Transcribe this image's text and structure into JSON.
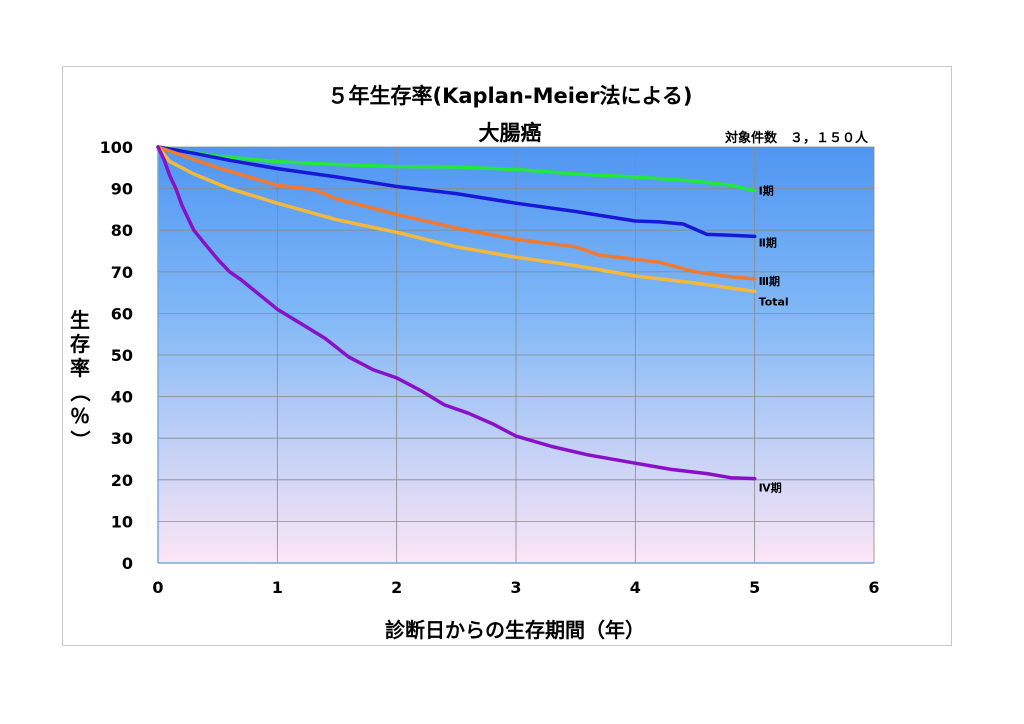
{
  "chart_data": {
    "type": "line",
    "title": "５年生存率(Kaplan-Meier法による)",
    "subtitle": "大腸癌",
    "count_label": "対象件数　３，１５０人",
    "xlabel": "診断日からの生存期間（年）",
    "ylabel": "生存率（％）",
    "xlim": [
      0,
      6
    ],
    "ylim": [
      0,
      100
    ],
    "xticks": [
      "0",
      "1",
      "2",
      "3",
      "4",
      "5",
      "6"
    ],
    "yticks": [
      "0",
      "10",
      "20",
      "30",
      "40",
      "50",
      "60",
      "70",
      "80",
      "90",
      "100"
    ],
    "grid": true,
    "series": [
      {
        "name": "Ⅰ期",
        "color": "#22e83a",
        "x": [
          0,
          0.5,
          1.0,
          1.5,
          2.0,
          2.5,
          3.0,
          3.5,
          4.0,
          4.5,
          4.8,
          5.0
        ],
        "y": [
          100,
          97.8,
          96.5,
          95.8,
          95.3,
          95.2,
          94.6,
          93.5,
          92.8,
          91.8,
          90.8,
          89.5
        ]
      },
      {
        "name": "Ⅱ期",
        "color": "#1818d8",
        "x": [
          0,
          0.3,
          0.6,
          1.0,
          1.5,
          2.0,
          2.5,
          3.0,
          3.5,
          4.0,
          4.2,
          4.4,
          4.6,
          4.8,
          5.0
        ],
        "y": [
          100,
          98.5,
          96.8,
          94.8,
          92.8,
          90.5,
          88.8,
          86.5,
          84.5,
          82.2,
          82.0,
          81.5,
          79.0,
          78.8,
          78.5
        ]
      },
      {
        "name": "Ⅲ期",
        "color": "#f07a30",
        "x": [
          0,
          0.2,
          0.5,
          1.0,
          1.3,
          1.5,
          2.0,
          2.5,
          3.0,
          3.5,
          3.7,
          4.0,
          4.2,
          4.5,
          4.8,
          5.0
        ],
        "y": [
          100,
          98,
          95,
          90.8,
          89.8,
          87.5,
          83.8,
          80.5,
          77.8,
          76.0,
          74.0,
          73.0,
          72.3,
          70.0,
          68.8,
          68.3
        ]
      },
      {
        "name": "Total",
        "color": "#f5b83a",
        "x": [
          0,
          0.1,
          0.3,
          0.6,
          1.0,
          1.5,
          2.0,
          2.5,
          3.0,
          3.5,
          4.0,
          4.5,
          5.0
        ],
        "y": [
          100,
          96.5,
          93.5,
          90.0,
          86.5,
          82.5,
          79.5,
          76.0,
          73.5,
          71.5,
          69.0,
          67.3,
          65.3
        ]
      },
      {
        "name": "Ⅳ期",
        "color": "#8a10c8",
        "x": [
          0,
          0.05,
          0.1,
          0.15,
          0.2,
          0.3,
          0.4,
          0.5,
          0.6,
          0.7,
          0.85,
          1.0,
          1.2,
          1.4,
          1.6,
          1.8,
          2.0,
          2.2,
          2.4,
          2.6,
          2.8,
          3.0,
          3.3,
          3.6,
          4.0,
          4.3,
          4.6,
          4.8,
          5.0
        ],
        "y": [
          100,
          97,
          93,
          90,
          86,
          80,
          76.5,
          73,
          70,
          68,
          64.5,
          61,
          57.5,
          54,
          49.5,
          46.5,
          44.5,
          41.5,
          38,
          36,
          33.5,
          30.5,
          28,
          26,
          24,
          22.5,
          21.5,
          20.5,
          20.3
        ]
      }
    ]
  }
}
